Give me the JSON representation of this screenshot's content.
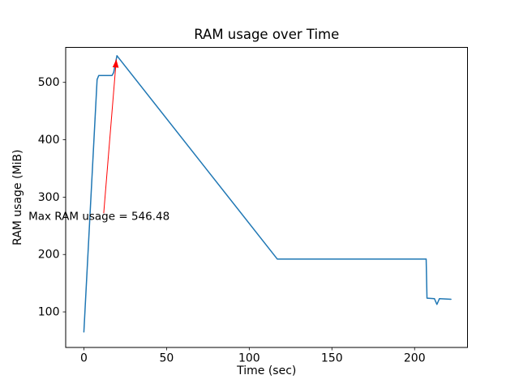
{
  "figure": {
    "background": "#ffffff",
    "spine_color": "#000000",
    "text_color": "#000000"
  },
  "chart_data": {
    "type": "line",
    "title": "RAM usage over Time",
    "xlabel": "Time (sec)",
    "ylabel": "RAM usage (MiB)",
    "xlim": [
      -11,
      232
    ],
    "ylim": [
      38,
      561
    ],
    "xticks": [
      0,
      50,
      100,
      150,
      200
    ],
    "yticks": [
      100,
      200,
      300,
      400,
      500
    ],
    "grid": false,
    "legend": null,
    "series": [
      {
        "name": "RAM usage",
        "color": "#1f77b4",
        "linewidth": 1.5,
        "points": [
          [
            0,
            65
          ],
          [
            8,
            505
          ],
          [
            9,
            512
          ],
          [
            17,
            512
          ],
          [
            18,
            517
          ],
          [
            20,
            546.48
          ],
          [
            117,
            192
          ],
          [
            207,
            192
          ],
          [
            207.5,
            124
          ],
          [
            212,
            123
          ],
          [
            213.5,
            113
          ],
          [
            215,
            123
          ],
          [
            222,
            122
          ]
        ]
      }
    ],
    "annotation": {
      "label": "Max RAM usage = 546.48",
      "color": "#ff0000",
      "text_xy": [
        -33.5,
        260
      ],
      "arrow_from": [
        12,
        272
      ],
      "arrow_to": [
        19.6,
        540
      ],
      "max_value": 546.48
    }
  }
}
